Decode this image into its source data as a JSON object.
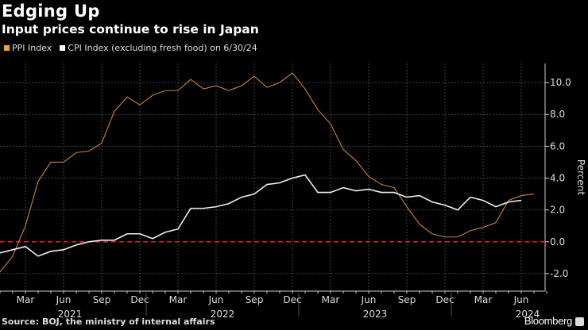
{
  "title": "Edging Up",
  "subtitle": "Input prices continue to rise in Japan",
  "source": "Source: BOJ, the ministry of internal affairs",
  "brand": "Bloomberg",
  "chart_data": {
    "type": "line",
    "ylabel": "Percent",
    "ylim": [
      -3.1,
      11.2
    ],
    "yticks": [
      -2,
      0,
      2,
      4,
      6,
      8,
      10
    ],
    "ytick_labels": [
      "-2.0",
      "0.0",
      "2.0",
      "4.0",
      "6.0",
      "8.0",
      "10.0"
    ],
    "grid": true,
    "reference_line": {
      "y": 0,
      "color": "#e0202a",
      "style": "dashed"
    },
    "legend_position": "top-left",
    "x_start": "2021-01",
    "xtick_labels": [
      {
        "month": "2021-03",
        "label": "Mar"
      },
      {
        "month": "2021-06",
        "label": "Jun"
      },
      {
        "month": "2021-09",
        "label": "Sep"
      },
      {
        "month": "2021-12",
        "label": "Dec"
      },
      {
        "month": "2022-03",
        "label": "Mar"
      },
      {
        "month": "2022-06",
        "label": "Jun"
      },
      {
        "month": "2022-09",
        "label": "Sep"
      },
      {
        "month": "2022-12",
        "label": "Dec"
      },
      {
        "month": "2023-03",
        "label": "Mar"
      },
      {
        "month": "2023-06",
        "label": "Jun"
      },
      {
        "month": "2023-09",
        "label": "Sep"
      },
      {
        "month": "2023-12",
        "label": "Dec"
      },
      {
        "month": "2024-03",
        "label": "Mar"
      },
      {
        "month": "2024-06",
        "label": "Jun"
      }
    ],
    "year_labels": [
      "2021",
      "2022",
      "2023",
      "2024"
    ],
    "series": [
      {
        "name": "PPI Index",
        "color": "#f2a33a",
        "line_color": "#c8823a",
        "values": [
          -1.9,
          -0.9,
          1.0,
          3.8,
          5.0,
          5.0,
          5.6,
          5.7,
          6.2,
          8.2,
          9.1,
          8.6,
          9.2,
          9.5,
          9.5,
          10.2,
          9.6,
          9.8,
          9.5,
          9.8,
          10.4,
          9.7,
          10.0,
          10.6,
          9.6,
          8.3,
          7.4,
          5.8,
          5.1,
          4.1,
          3.6,
          3.4,
          2.2,
          1.1,
          0.5,
          0.3,
          0.3,
          0.7,
          0.9,
          1.2,
          2.6,
          2.9,
          3.0
        ]
      },
      {
        "name": "CPI Index (excluding fresh food) on 6/30/24",
        "color": "#ffffff",
        "line_color": "#eeeeee",
        "values": [
          -0.7,
          -0.5,
          -0.3,
          -0.9,
          -0.6,
          -0.5,
          -0.2,
          0.0,
          0.1,
          0.1,
          0.5,
          0.5,
          0.2,
          0.6,
          0.8,
          2.1,
          2.1,
          2.2,
          2.4,
          2.8,
          3.0,
          3.6,
          3.7,
          4.0,
          4.2,
          3.1,
          3.1,
          3.4,
          3.2,
          3.3,
          3.1,
          3.1,
          2.8,
          2.9,
          2.5,
          2.3,
          2.0,
          2.8,
          2.6,
          2.2,
          2.5,
          2.6
        ]
      }
    ]
  }
}
